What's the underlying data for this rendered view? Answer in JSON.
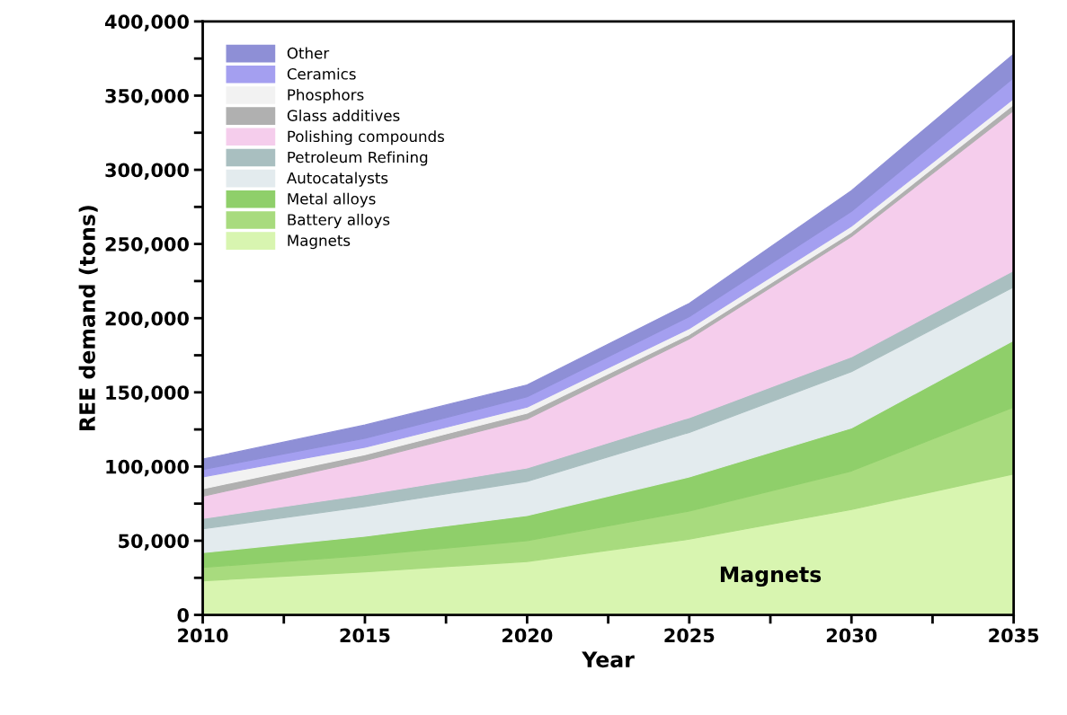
{
  "chart_data": {
    "type": "area",
    "stacked": true,
    "xlabel": "Year",
    "ylabel": "REE demand (tons)",
    "x": [
      2010,
      2015,
      2020,
      2025,
      2030,
      2035
    ],
    "series": [
      {
        "name": "Magnets",
        "color": "#d8f5b0",
        "values": [
          23000,
          29000,
          36000,
          51000,
          71000,
          95000
        ]
      },
      {
        "name": "Battery alloys",
        "color": "#a8db7e",
        "values": [
          9000,
          11000,
          14000,
          19000,
          26000,
          45000
        ]
      },
      {
        "name": "Metal alloys",
        "color": "#8fcf6a",
        "values": [
          10000,
          13000,
          17000,
          23000,
          29000,
          45000
        ]
      },
      {
        "name": "Autocatalysts",
        "color": "#e3ebee",
        "values": [
          16000,
          20000,
          23000,
          30000,
          38000,
          36000
        ]
      },
      {
        "name": "Petroleum Refining",
        "color": "#a9bfc0",
        "values": [
          7000,
          8000,
          9000,
          10000,
          10000,
          11000
        ]
      },
      {
        "name": "Polishing compounds",
        "color": "#f5cdec",
        "values": [
          15000,
          23000,
          33000,
          53000,
          81000,
          108000
        ]
      },
      {
        "name": "Glass additives",
        "color": "#b0b0b0",
        "values": [
          5000,
          4000,
          4000,
          3000,
          3000,
          4000
        ]
      },
      {
        "name": "Phosphors",
        "color": "#f2f2f2",
        "values": [
          8000,
          5000,
          4000,
          4000,
          4000,
          4000
        ]
      },
      {
        "name": "Ceramics",
        "color": "#a49ff0",
        "values": [
          5000,
          6000,
          7000,
          8000,
          10000,
          14000
        ]
      },
      {
        "name": "Other",
        "color": "#8e8fd6",
        "values": [
          7000,
          9000,
          8000,
          9000,
          14000,
          16000
        ]
      }
    ],
    "xlim": [
      2010,
      2035
    ],
    "xticks": [
      2010,
      {
        "value": 2012.5,
        "label": null
      },
      2015,
      {
        "value": 2017.5,
        "label": null
      },
      2020,
      {
        "value": 2022.5,
        "label": null
      },
      2025,
      {
        "value": 2027.5,
        "label": null
      },
      2030,
      {
        "value": 2032.5,
        "label": null
      },
      2035
    ],
    "ylim": [
      0,
      400000
    ],
    "yticks": [
      0,
      {
        "value": 25000,
        "label": null
      },
      {
        "value": 50000,
        "label": "50,000"
      },
      {
        "value": 75000,
        "label": null
      },
      {
        "value": 100000,
        "label": "100,000"
      },
      {
        "value": 125000,
        "label": null
      },
      {
        "value": 150000,
        "label": "150,000"
      },
      {
        "value": 175000,
        "label": null
      },
      {
        "value": 200000,
        "label": "200,000"
      },
      {
        "value": 225000,
        "label": null
      },
      {
        "value": 250000,
        "label": "250,000"
      },
      {
        "value": 275000,
        "label": null
      },
      {
        "value": 300000,
        "label": "300,000"
      },
      {
        "value": 325000,
        "label": null
      },
      {
        "value": 350000,
        "label": "350,000"
      },
      {
        "value": 375000,
        "label": null
      },
      {
        "value": 400000,
        "label": "400,000"
      }
    ],
    "annotations": [
      "Magnets"
    ],
    "legend": "top left",
    "grid": false
  }
}
